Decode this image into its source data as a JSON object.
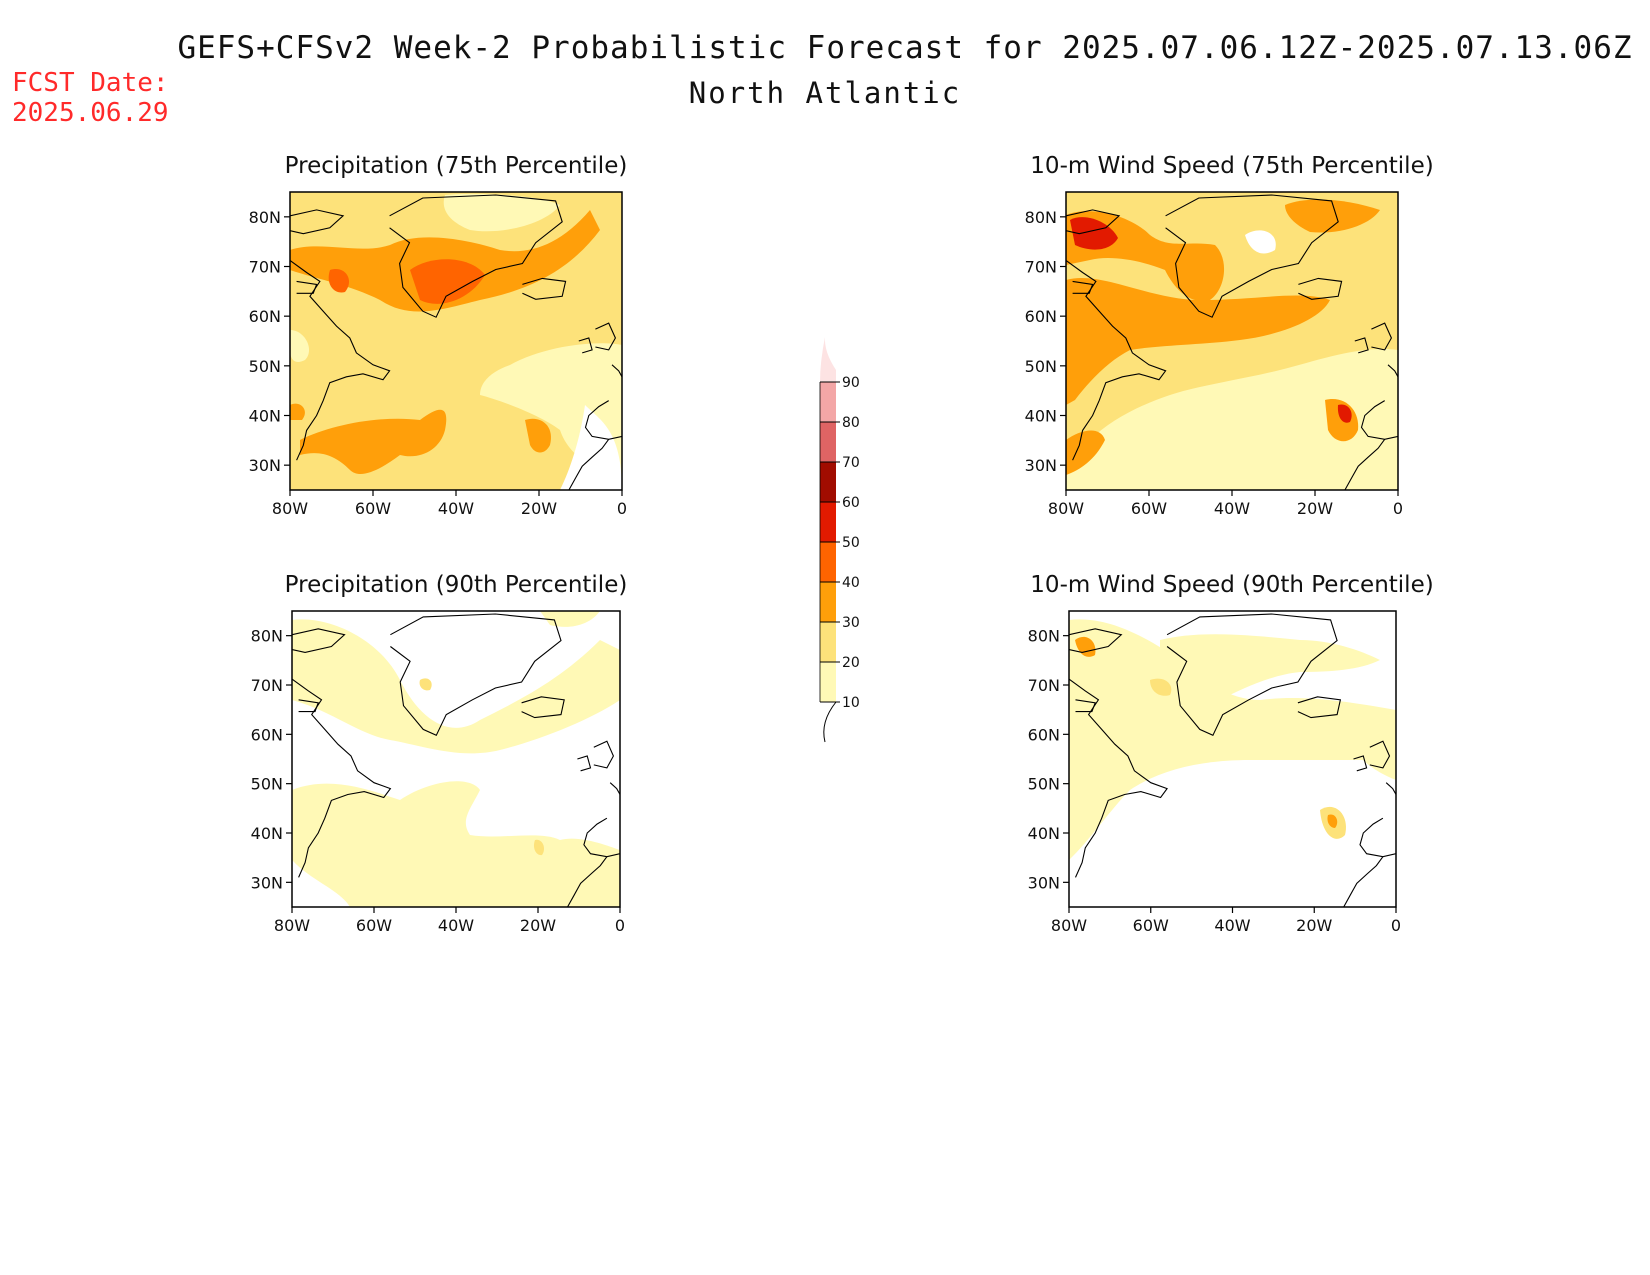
{
  "header": {
    "title": "GEFS+CFSv2 Week-2 Probabilistic Forecast for 2025.07.06.12Z-2025.07.13.06Z",
    "subtitle": "North Atlantic",
    "fcst_label": "FCST Date:",
    "fcst_date": "2025.06.29"
  },
  "colors": {
    "levels": [
      "#fff9b6",
      "#fde27a",
      "#ff9f0a",
      "#ff6400",
      "#e21a00",
      "#a10c00",
      "#df6464",
      "#f3a6a6",
      "#fde3e3"
    ],
    "border": "#000000",
    "fcst_text": "#ff2a2a"
  },
  "colorbar": {
    "labels": [
      "10",
      "20",
      "30",
      "40",
      "50",
      "60",
      "70",
      "80",
      "90"
    ]
  },
  "chart_data": [
    {
      "type": "heatmap",
      "title": "Precipitation (75th Percentile)",
      "x_ticks": [
        "80W",
        "60W",
        "40W",
        "20W",
        "0"
      ],
      "y_ticks": [
        "80N",
        "70N",
        "60N",
        "50N",
        "40N",
        "30N"
      ],
      "lon_range": [
        -80,
        0
      ],
      "lat_range": [
        25,
        85
      ],
      "dominant_probability_range": [
        20,
        30
      ],
      "max_probability_range": [
        40,
        50
      ]
    },
    {
      "type": "heatmap",
      "title": "10-m Wind Speed (75th Percentile)",
      "x_ticks": [
        "80W",
        "60W",
        "40W",
        "20W",
        "0"
      ],
      "y_ticks": [
        "80N",
        "70N",
        "60N",
        "50N",
        "40N",
        "30N"
      ],
      "lon_range": [
        -80,
        0
      ],
      "lat_range": [
        25,
        85
      ],
      "dominant_probability_range": [
        20,
        40
      ],
      "max_probability_range": [
        50,
        60
      ]
    },
    {
      "type": "heatmap",
      "title": "Precipitation (90th Percentile)",
      "x_ticks": [
        "80W",
        "60W",
        "40W",
        "20W",
        "0"
      ],
      "y_ticks": [
        "80N",
        "70N",
        "60N",
        "50N",
        "40N",
        "30N"
      ],
      "lon_range": [
        -80,
        0
      ],
      "lat_range": [
        25,
        85
      ],
      "dominant_probability_range": [
        10,
        20
      ],
      "max_probability_range": [
        20,
        30
      ]
    },
    {
      "type": "heatmap",
      "title": "10-m Wind Speed (90th Percentile)",
      "x_ticks": [
        "80W",
        "60W",
        "40W",
        "20W",
        "0"
      ],
      "y_ticks": [
        "80N",
        "70N",
        "60N",
        "50N",
        "40N",
        "30N"
      ],
      "lon_range": [
        -80,
        0
      ],
      "lat_range": [
        25,
        85
      ],
      "dominant_probability_range": [
        10,
        20
      ],
      "max_probability_range": [
        30,
        40
      ]
    }
  ]
}
